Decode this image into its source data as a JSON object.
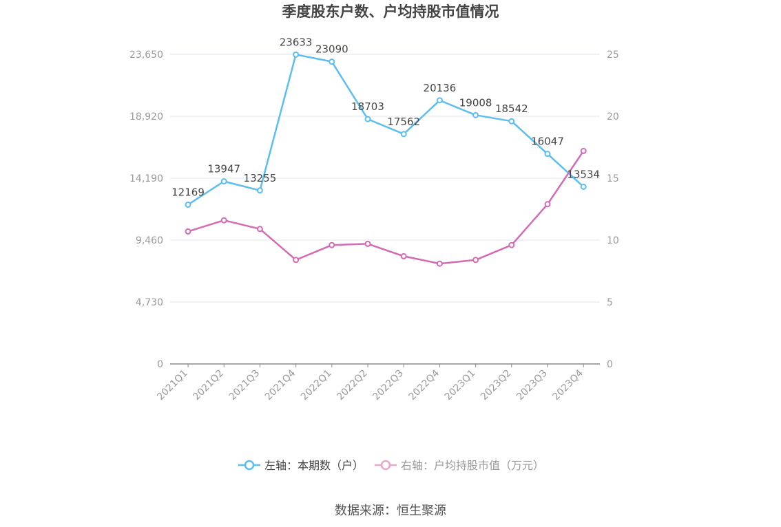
{
  "chart_data": {
    "type": "line",
    "title": "季度股东户数、户均持股市值情况",
    "categories": [
      "2021Q1",
      "2021Q2",
      "2021Q3",
      "2021Q4",
      "2022Q1",
      "2022Q2",
      "2022Q3",
      "2022Q4",
      "2023Q1",
      "2023Q2",
      "2023Q3",
      "2023Q4"
    ],
    "y_left": {
      "ticks": [
        "0",
        "4,730",
        "9,460",
        "14,190",
        "18,920",
        "23,650"
      ],
      "min": 0,
      "max": 23650
    },
    "y_right": {
      "ticks": [
        "0",
        "5",
        "10",
        "15",
        "20",
        "25"
      ],
      "min": 0,
      "max": 25
    },
    "series": [
      {
        "name": "左轴：本期数（户）",
        "axis": "left",
        "color": "#5bbdf0",
        "values": [
          12169,
          13947,
          13255,
          23633,
          23090,
          18703,
          17562,
          20136,
          19008,
          18542,
          16047,
          13534
        ],
        "labels": [
          "12169",
          "13947",
          "13255",
          "23633",
          "23090",
          "18703",
          "17562",
          "20136",
          "19008",
          "18542",
          "16047",
          "13534"
        ]
      },
      {
        "name": "右轴：户均持股市值（万元）",
        "axis": "right",
        "color": "#d36bb4",
        "values": [
          10.7,
          11.6,
          10.9,
          8.4,
          9.6,
          9.7,
          8.7,
          8.1,
          8.4,
          9.6,
          12.9,
          17.2
        ]
      }
    ],
    "grid": true,
    "legend_position": "bottom"
  },
  "source": "数据来源：恒生聚源",
  "colors": {
    "grid": "#e3e6ef",
    "axis": "#888888",
    "tick_text": "#9a9a9a",
    "label_text": "#444444",
    "title_text": "#444444",
    "legend_text_active": "#444444",
    "legend_text_muted": "#999999"
  }
}
